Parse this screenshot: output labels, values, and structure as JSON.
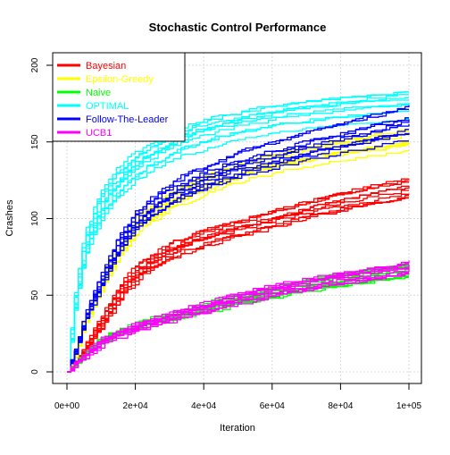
{
  "chart_data": {
    "type": "line",
    "title": "Stochastic Control Performance",
    "xlabel": "Iteration",
    "ylabel": "Crashes",
    "xlim": [
      0,
      100000
    ],
    "ylim": [
      0,
      200
    ],
    "x_ticks": [
      {
        "value": 0,
        "label": "0e+00"
      },
      {
        "value": 20000,
        "label": "2e+04"
      },
      {
        "value": 40000,
        "label": "4e+04"
      },
      {
        "value": 60000,
        "label": "6e+04"
      },
      {
        "value": 80000,
        "label": "8e+04"
      },
      {
        "value": 100000,
        "label": "1e+05"
      }
    ],
    "y_ticks": [
      {
        "value": 0,
        "label": "0"
      },
      {
        "value": 50,
        "label": "50"
      },
      {
        "value": 100,
        "label": "100"
      },
      {
        "value": 150,
        "label": "150"
      },
      {
        "value": 200,
        "label": "200"
      }
    ],
    "grid": true,
    "legend_position": "top-left",
    "runs_per_series": 10,
    "x_sample_points": [
      0,
      2000,
      5000,
      10000,
      15000,
      20000,
      30000,
      40000,
      50000,
      60000,
      70000,
      80000,
      90000,
      100000
    ],
    "series": [
      {
        "name": "Bayesian",
        "color": "#ff0000",
        "values": [
          0,
          5,
          16,
          36,
          55,
          68,
          82,
          90,
          96,
          102,
          108,
          113,
          117,
          121
        ]
      },
      {
        "name": "Epsilon-Greedy",
        "color": "#ffff00",
        "values": [
          0,
          10,
          32,
          58,
          80,
          96,
          112,
          122,
          130,
          136,
          140,
          144,
          147,
          150
        ]
      },
      {
        "name": "Naive",
        "color": "#00ff00",
        "values": [
          0,
          4,
          12,
          21,
          26,
          30,
          36,
          42,
          47,
          52,
          56,
          60,
          63,
          66
        ]
      },
      {
        "name": "OPTIMAL",
        "color": "#00ffff",
        "values": [
          0,
          45,
          85,
          112,
          127,
          137,
          150,
          158,
          163,
          167,
          170,
          172,
          174,
          176
        ]
      },
      {
        "name": "Follow-The-Leader",
        "color": "#0000ff",
        "values": [
          0,
          12,
          35,
          62,
          85,
          100,
          117,
          127,
          135,
          141,
          147,
          152,
          157,
          162
        ]
      },
      {
        "name": "UCB1",
        "color": "#ff00ff",
        "values": [
          0,
          4,
          11,
          20,
          25,
          29,
          36,
          42,
          48,
          53,
          57,
          61,
          64,
          68
        ]
      }
    ]
  }
}
